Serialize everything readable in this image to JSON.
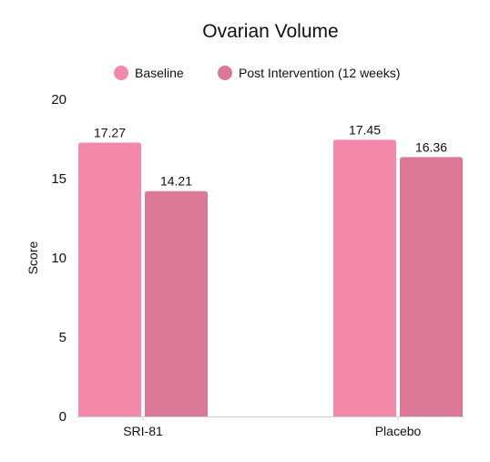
{
  "chart_data": {
    "type": "bar",
    "title": "Ovarian Volume",
    "xlabel": "",
    "ylabel": "Score",
    "ylim": [
      0,
      20
    ],
    "yticks": [
      0,
      5,
      10,
      15,
      20
    ],
    "categories": [
      "SRI-81",
      "Placebo"
    ],
    "series": [
      {
        "name": "Baseline",
        "color": "#f389a8",
        "values": [
          17.27,
          17.45
        ],
        "labels": [
          "17.27",
          "17.45"
        ]
      },
      {
        "name": "Post Intervention (12 weeks)",
        "color": "#db7896",
        "values": [
          14.21,
          16.36
        ],
        "labels": [
          "14.21",
          "16.36"
        ]
      }
    ],
    "legend_position": "top-center",
    "grid": false
  }
}
